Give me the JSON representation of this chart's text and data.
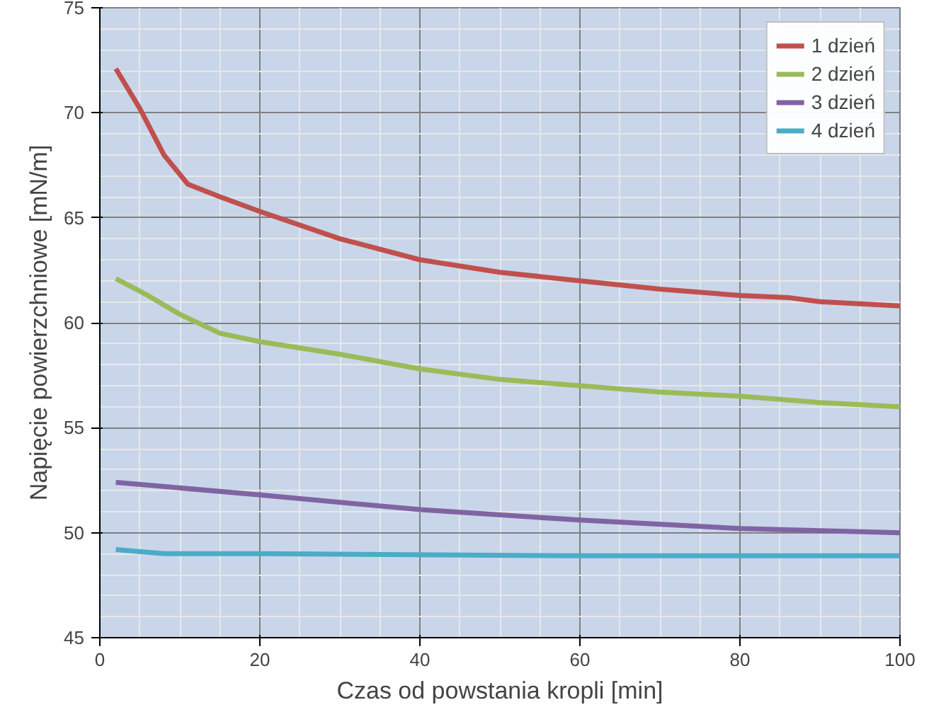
{
  "chart_data": {
    "type": "line",
    "xlabel": "Czas od powstania kropli [min]",
    "ylabel": "Napięcie powierzchniowe [mN/m]",
    "xlim": [
      0,
      100
    ],
    "ylim": [
      45,
      75
    ],
    "xticks": [
      0,
      20,
      40,
      60,
      80,
      100
    ],
    "yticks": [
      45,
      50,
      55,
      60,
      65,
      70,
      75
    ],
    "grid": true,
    "legend": "top right",
    "series": [
      {
        "name": "1 dzień",
        "color": "#c0504d",
        "x": [
          2,
          5,
          8,
          11,
          15,
          20,
          30,
          40,
          50,
          60,
          70,
          80,
          86,
          90,
          100
        ],
        "values": [
          72.1,
          70.2,
          68,
          66.6,
          66,
          65.3,
          64,
          63,
          62.4,
          62,
          61.6,
          61.3,
          61.2,
          61,
          60.8
        ]
      },
      {
        "name": "2 dzień",
        "color": "#9bbb59",
        "x": [
          2,
          6,
          10,
          15,
          20,
          30,
          40,
          50,
          60,
          70,
          80,
          90,
          100
        ],
        "values": [
          62.1,
          61.3,
          60.4,
          59.5,
          59.1,
          58.5,
          57.8,
          57.3,
          57,
          56.7,
          56.5,
          56.2,
          56
        ]
      },
      {
        "name": "3 dzień",
        "color": "#8064a2",
        "x": [
          2,
          20,
          40,
          60,
          80,
          100
        ],
        "values": [
          52.4,
          51.8,
          51.1,
          50.6,
          50.2,
          50.0
        ]
      },
      {
        "name": "4 dzień",
        "color": "#4bacc6",
        "x": [
          2,
          8,
          20,
          60,
          100
        ],
        "values": [
          49.2,
          49.0,
          49.0,
          48.9,
          48.9
        ]
      }
    ]
  }
}
